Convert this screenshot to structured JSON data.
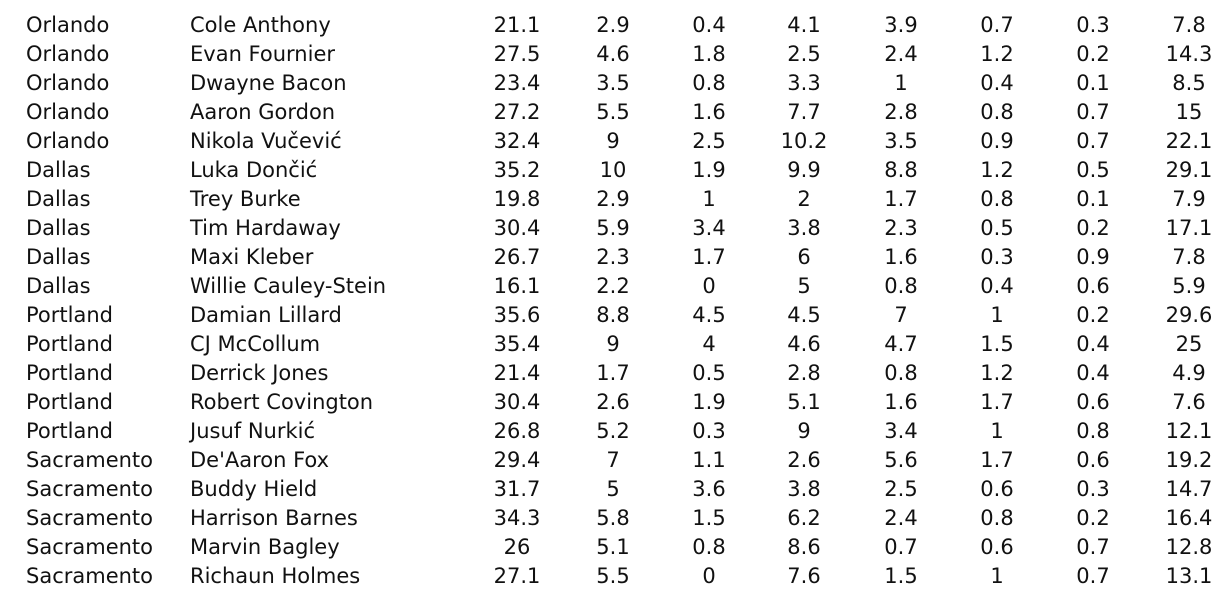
{
  "rows": [
    {
      "team": "Orlando",
      "player": "Cole Anthony",
      "stats": [
        "21.1",
        "2.9",
        "0.4",
        "4.1",
        "3.9",
        "0.7",
        "0.3",
        "7.8"
      ]
    },
    {
      "team": "Orlando",
      "player": "Evan Fournier",
      "stats": [
        "27.5",
        "4.6",
        "1.8",
        "2.5",
        "2.4",
        "1.2",
        "0.2",
        "14.3"
      ]
    },
    {
      "team": "Orlando",
      "player": "Dwayne Bacon",
      "stats": [
        "23.4",
        "3.5",
        "0.8",
        "3.3",
        "1",
        "0.4",
        "0.1",
        "8.5"
      ]
    },
    {
      "team": "Orlando",
      "player": "Aaron Gordon",
      "stats": [
        "27.2",
        "5.5",
        "1.6",
        "7.7",
        "2.8",
        "0.8",
        "0.7",
        "15"
      ]
    },
    {
      "team": "Orlando",
      "player": "Nikola Vučević",
      "stats": [
        "32.4",
        "9",
        "2.5",
        "10.2",
        "3.5",
        "0.9",
        "0.7",
        "22.1"
      ]
    },
    {
      "team": "Dallas",
      "player": "Luka Dončić",
      "stats": [
        "35.2",
        "10",
        "1.9",
        "9.9",
        "8.8",
        "1.2",
        "0.5",
        "29.1"
      ]
    },
    {
      "team": "Dallas",
      "player": "Trey Burke",
      "stats": [
        "19.8",
        "2.9",
        "1",
        "2",
        "1.7",
        "0.8",
        "0.1",
        "7.9"
      ]
    },
    {
      "team": "Dallas",
      "player": "Tim Hardaway",
      "stats": [
        "30.4",
        "5.9",
        "3.4",
        "3.8",
        "2.3",
        "0.5",
        "0.2",
        "17.1"
      ]
    },
    {
      "team": "Dallas",
      "player": "Maxi Kleber",
      "stats": [
        "26.7",
        "2.3",
        "1.7",
        "6",
        "1.6",
        "0.3",
        "0.9",
        "7.8"
      ]
    },
    {
      "team": "Dallas",
      "player": "Willie Cauley-Stein",
      "stats": [
        "16.1",
        "2.2",
        "0",
        "5",
        "0.8",
        "0.4",
        "0.6",
        "5.9"
      ]
    },
    {
      "team": "Portland",
      "player": "Damian Lillard",
      "stats": [
        "35.6",
        "8.8",
        "4.5",
        "4.5",
        "7",
        "1",
        "0.2",
        "29.6"
      ]
    },
    {
      "team": "Portland",
      "player": "CJ McCollum",
      "stats": [
        "35.4",
        "9",
        "4",
        "4.6",
        "4.7",
        "1.5",
        "0.4",
        "25"
      ]
    },
    {
      "team": "Portland",
      "player": "Derrick Jones",
      "stats": [
        "21.4",
        "1.7",
        "0.5",
        "2.8",
        "0.8",
        "1.2",
        "0.4",
        "4.9"
      ]
    },
    {
      "team": "Portland",
      "player": "Robert Covington",
      "stats": [
        "30.4",
        "2.6",
        "1.9",
        "5.1",
        "1.6",
        "1.7",
        "0.6",
        "7.6"
      ]
    },
    {
      "team": "Portland",
      "player": "Jusuf Nurkić",
      "stats": [
        "26.8",
        "5.2",
        "0.3",
        "9",
        "3.4",
        "1",
        "0.8",
        "12.1"
      ]
    },
    {
      "team": "Sacramento",
      "player": "De'Aaron Fox",
      "stats": [
        "29.4",
        "7",
        "1.1",
        "2.6",
        "5.6",
        "1.7",
        "0.6",
        "19.2"
      ]
    },
    {
      "team": "Sacramento",
      "player": "Buddy Hield",
      "stats": [
        "31.7",
        "5",
        "3.6",
        "3.8",
        "2.5",
        "0.6",
        "0.3",
        "14.7"
      ]
    },
    {
      "team": "Sacramento",
      "player": "Harrison Barnes",
      "stats": [
        "34.3",
        "5.8",
        "1.5",
        "6.2",
        "2.4",
        "0.8",
        "0.2",
        "16.4"
      ]
    },
    {
      "team": "Sacramento",
      "player": "Marvin Bagley",
      "stats": [
        "26",
        "5.1",
        "0.8",
        "8.6",
        "0.7",
        "0.6",
        "0.7",
        "12.8"
      ]
    },
    {
      "team": "Sacramento",
      "player": "Richaun Holmes",
      "stats": [
        "27.1",
        "5.5",
        "0",
        "7.6",
        "1.5",
        "1",
        "0.7",
        "13.1"
      ]
    }
  ]
}
